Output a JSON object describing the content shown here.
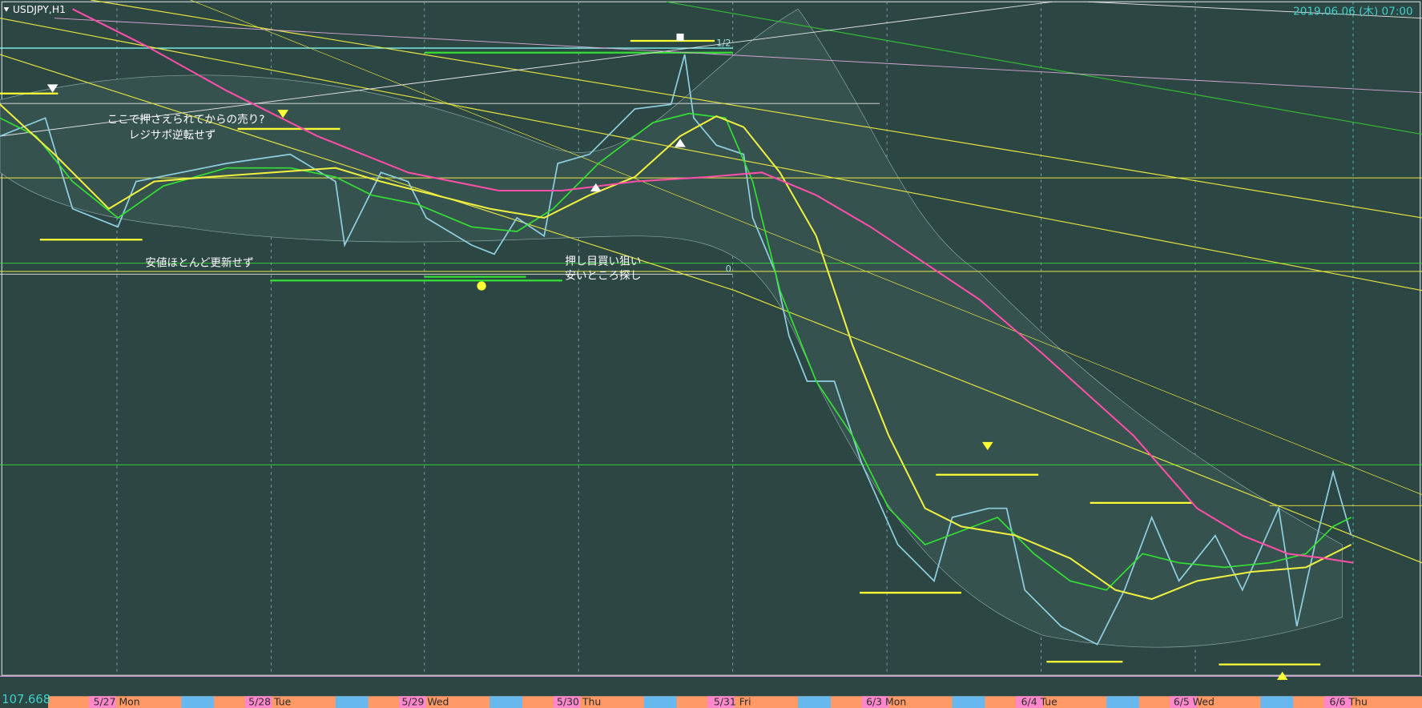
{
  "header": {
    "symbol": "USDJPY,H1",
    "datetime": "2019.06.06 (木) 07:00"
  },
  "price_label": "107.668",
  "annotations": [
    "ここで押さえられてからの売り?",
    "レジサポ逆転せず",
    "安値ほとんど更新せず",
    "押し目買い狙い",
    "安いところ探し",
    "1/2",
    "0"
  ],
  "time_axis": [
    "5/27 Mon",
    "5/28 Tue",
    "5/29 Wed",
    "5/30 Thu",
    "5/31 Fri",
    "6/3 Mon",
    "6/4 Tue",
    "6/5 Wed",
    "6/6 Thu"
  ]
}
